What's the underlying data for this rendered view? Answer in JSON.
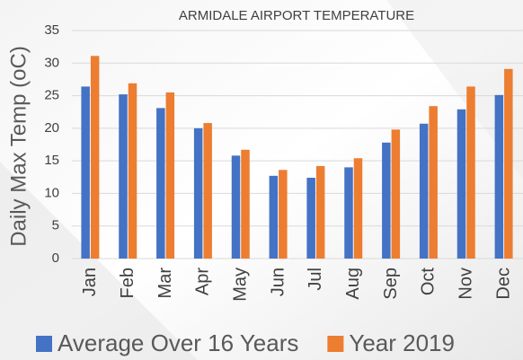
{
  "chart_data": {
    "type": "bar",
    "title": "ARMIDALE AIRPORT TEMPERATURE",
    "y_label": "Daily Max Temp (oC)",
    "categories": [
      "Jan",
      "Feb",
      "Mar",
      "Apr",
      "May",
      "Jun",
      "Jul",
      "Aug",
      "Sep",
      "Oct",
      "Nov",
      "Dec"
    ],
    "series": [
      {
        "name": "Average Over 16 Years",
        "color": "#4472c4",
        "values": [
          26.4,
          25.2,
          23.1,
          20.0,
          15.8,
          12.7,
          12.4,
          14.0,
          17.8,
          20.7,
          22.9,
          25.1
        ]
      },
      {
        "name": "Year 2019",
        "color": "#ed7d31",
        "values": [
          31.1,
          26.9,
          25.5,
          20.8,
          16.7,
          13.6,
          14.2,
          15.4,
          19.8,
          23.4,
          26.4,
          29.1
        ]
      }
    ],
    "ylim": [
      0,
      35
    ],
    "yticks": [
      0,
      5,
      10,
      15,
      20,
      25,
      30,
      35
    ],
    "grid": true,
    "legend": "bottom"
  }
}
